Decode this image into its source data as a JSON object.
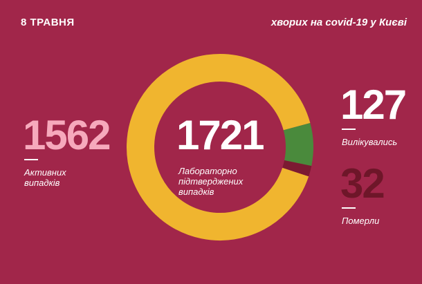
{
  "chart_data": {
    "type": "donut",
    "date": "8 ТРАВНЯ",
    "title": "хворих на covid-19 у Києві",
    "total": 1721,
    "total_label": "Лабораторно підтверджених випадків",
    "categories": [
      "Активних випадків",
      "Вилікувались",
      "Померли"
    ],
    "values": [
      1562,
      127,
      32
    ],
    "colors": [
      "#f0b52f",
      "#4a8a3c",
      "#7c1a32"
    ],
    "number_colors": [
      "#f6a9bc",
      "#ffffff",
      "#6e1629"
    ]
  }
}
